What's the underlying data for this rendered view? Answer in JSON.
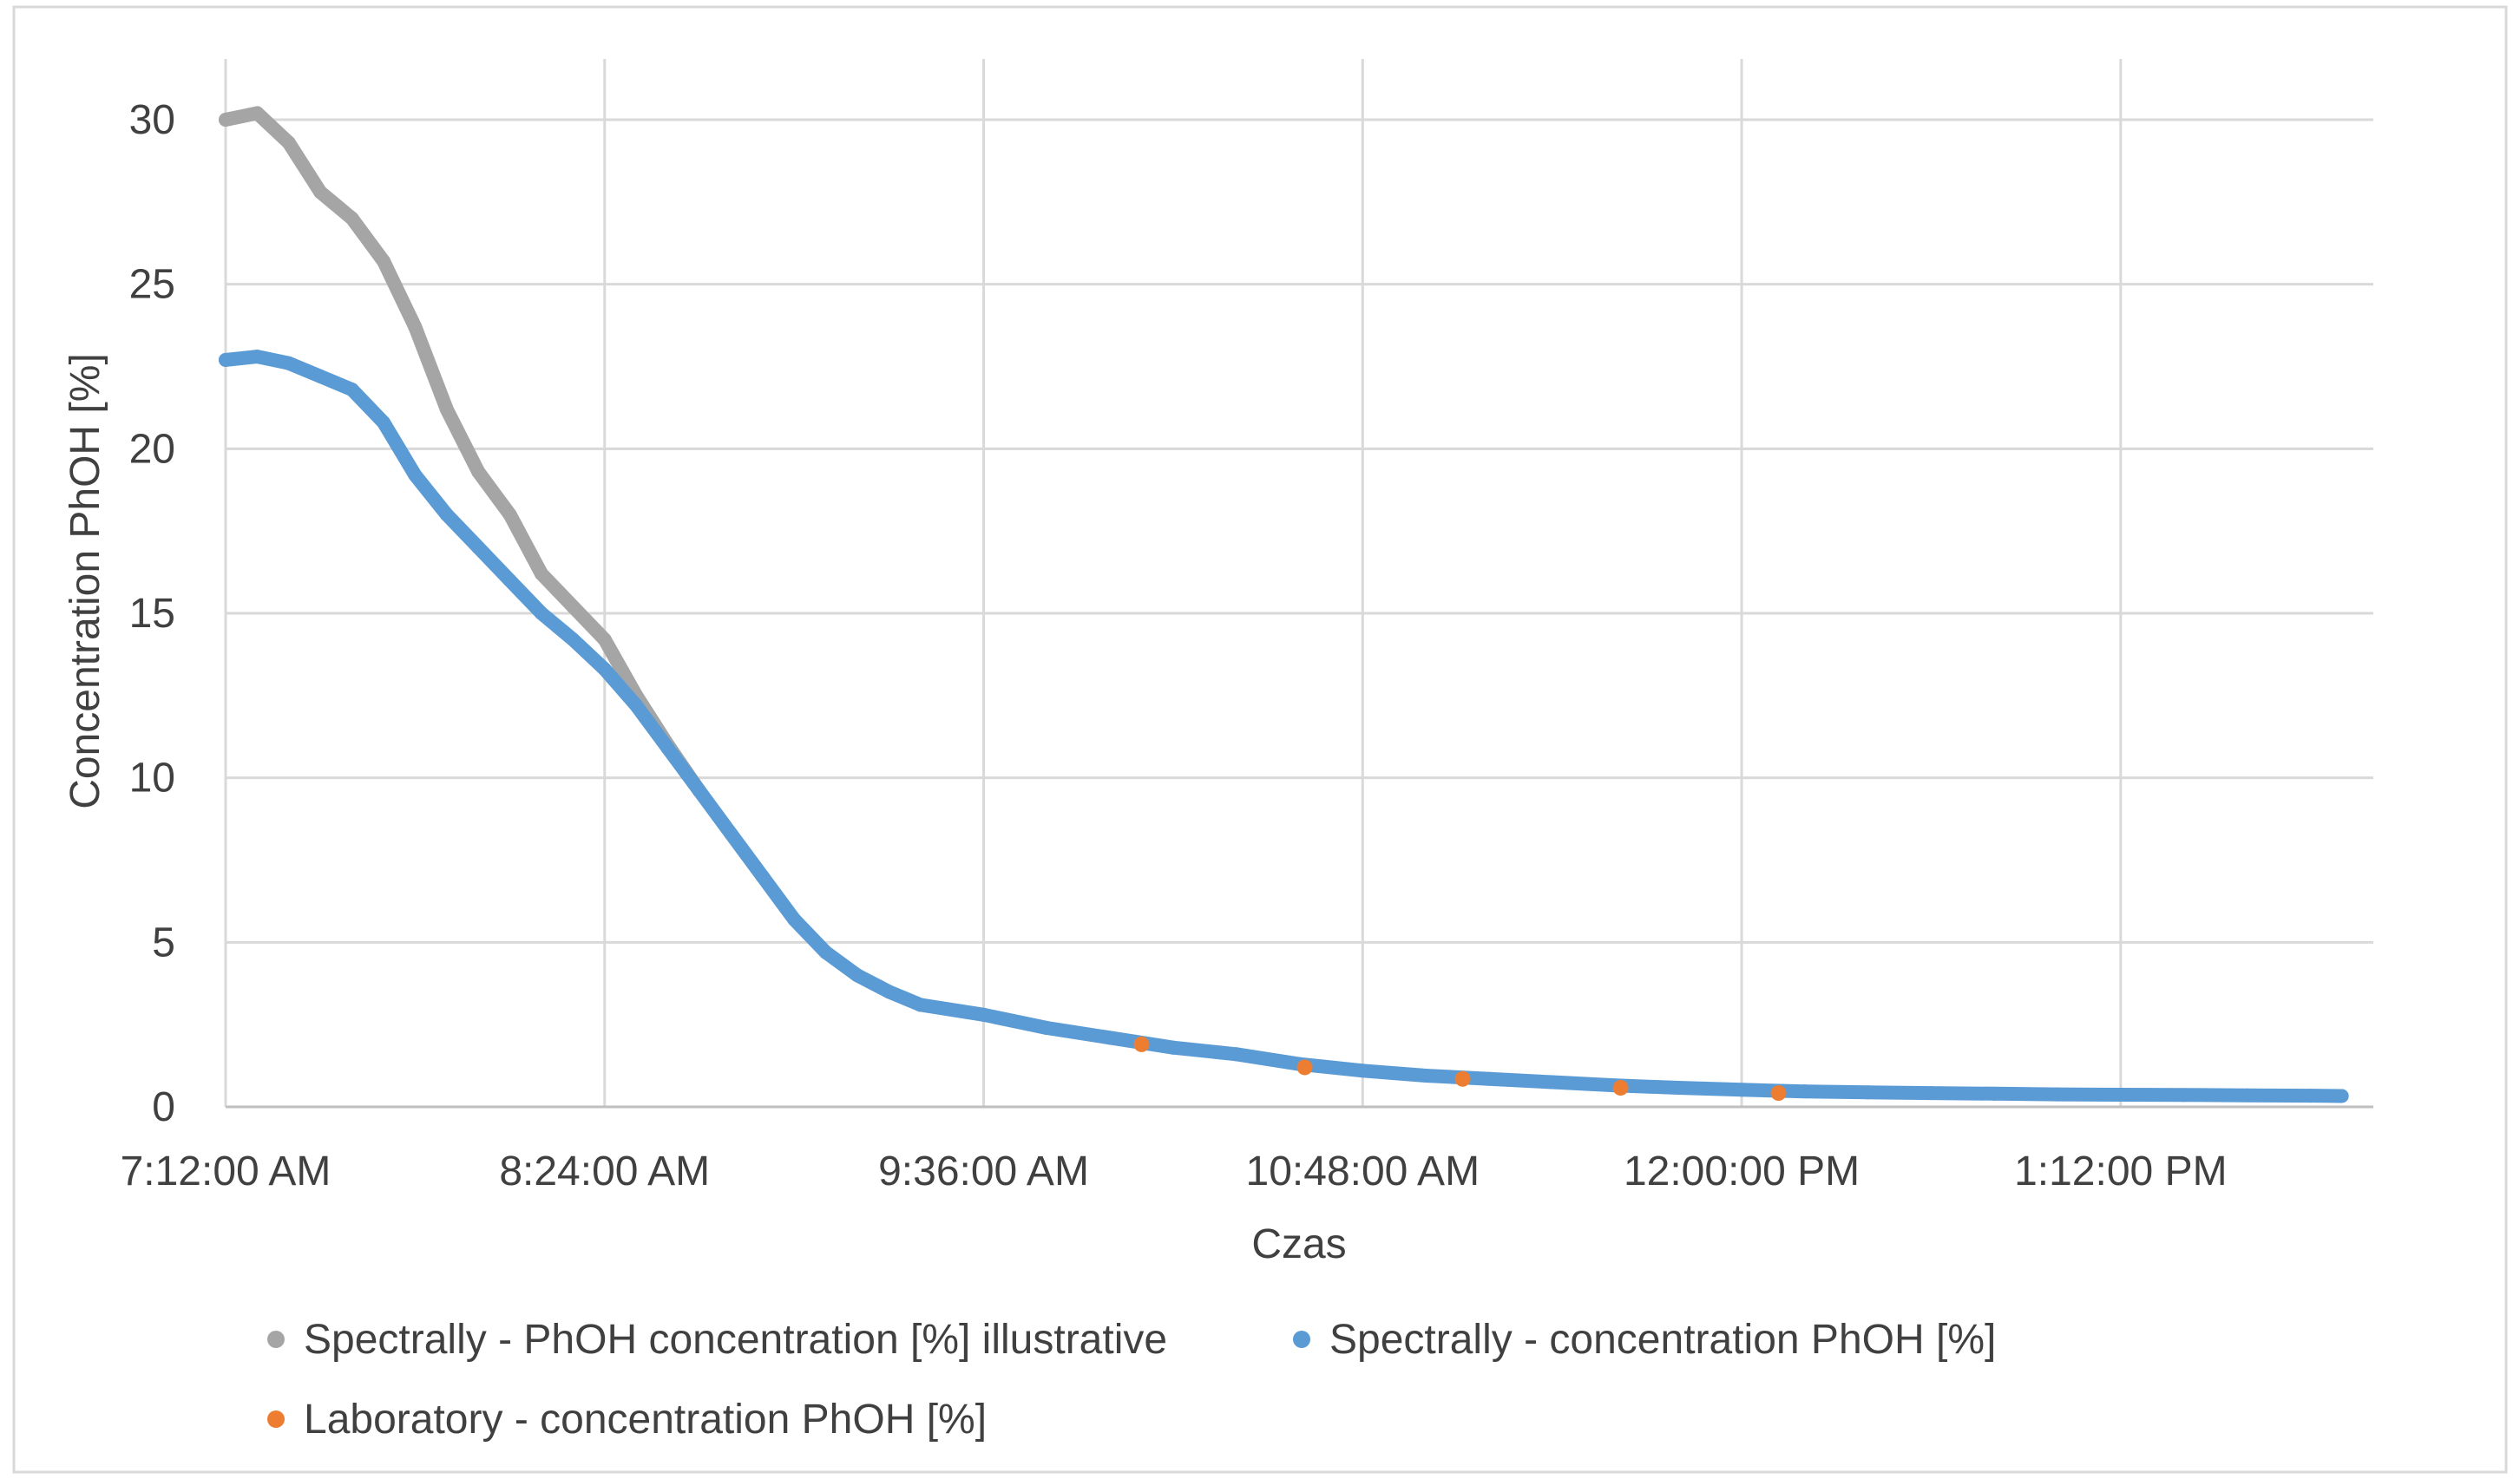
{
  "chart_data": {
    "type": "scatter",
    "title": "",
    "xlabel": "Czas",
    "ylabel": "Concentration PhOH [%]",
    "x_unit": "minutes after 7:12:00 AM",
    "xlim": [
      "7:12:00 AM",
      "2:00:00 PM"
    ],
    "ylim": [
      0,
      30
    ],
    "y_ticks": [
      "0",
      "5",
      "10",
      "15",
      "20",
      "25",
      "30"
    ],
    "x_ticks": [
      "7:12:00 AM",
      "8:24:00 AM",
      "9:36:00 AM",
      "10:48:00 AM",
      "12:00:00 PM",
      "1:12:00 PM"
    ],
    "grid": true,
    "legend_position": "bottom",
    "series": [
      {
        "name": "Spectrally - PhOH concentration [%] illustrative",
        "color": "#a5a5a5",
        "points": [
          [
            "7:12:00 AM",
            30.0
          ],
          [
            "7:18:00 AM",
            30.2
          ],
          [
            "7:24:00 AM",
            29.3
          ],
          [
            "7:30:00 AM",
            27.8
          ],
          [
            "7:36:00 AM",
            27.0
          ],
          [
            "7:42:00 AM",
            25.7
          ],
          [
            "7:48:00 AM",
            23.7
          ],
          [
            "7:54:00 AM",
            21.2
          ],
          [
            "8:00:00 AM",
            19.3
          ],
          [
            "8:06:00 AM",
            18.0
          ],
          [
            "8:12:00 AM",
            16.2
          ],
          [
            "8:18:00 AM",
            15.2
          ],
          [
            "8:24:00 AM",
            14.2
          ],
          [
            "8:30:00 AM",
            12.5
          ],
          [
            "8:36:00 AM",
            11.0
          ],
          [
            "8:42:00 AM",
            9.6
          ]
        ]
      },
      {
        "name": "Spectrally - concentration PhOH [%]",
        "color": "#5b9bd5",
        "points": [
          [
            "7:12:00 AM",
            22.7
          ],
          [
            "7:18:00 AM",
            22.8
          ],
          [
            "7:24:00 AM",
            22.6
          ],
          [
            "7:30:00 AM",
            22.2
          ],
          [
            "7:36:00 AM",
            21.8
          ],
          [
            "7:42:00 AM",
            20.8
          ],
          [
            "7:48:00 AM",
            19.2
          ],
          [
            "7:54:00 AM",
            18.0
          ],
          [
            "8:00:00 AM",
            17.0
          ],
          [
            "8:06:00 AM",
            16.0
          ],
          [
            "8:12:00 AM",
            15.0
          ],
          [
            "8:18:00 AM",
            14.2
          ],
          [
            "8:24:00 AM",
            13.3
          ],
          [
            "8:30:00 AM",
            12.2
          ],
          [
            "8:36:00 AM",
            10.9
          ],
          [
            "8:42:00 AM",
            9.6
          ],
          [
            "8:48:00 AM",
            8.3
          ],
          [
            "8:54:00 AM",
            7.0
          ],
          [
            "9:00:00 AM",
            5.7
          ],
          [
            "9:06:00 AM",
            4.7
          ],
          [
            "9:12:00 AM",
            4.0
          ],
          [
            "9:18:00 AM",
            3.5
          ],
          [
            "9:24:00 AM",
            3.1
          ],
          [
            "9:36:00 AM",
            2.8
          ],
          [
            "9:48:00 AM",
            2.4
          ],
          [
            "10:00:00 AM",
            2.1
          ],
          [
            "10:12:00 AM",
            1.8
          ],
          [
            "10:24:00 AM",
            1.6
          ],
          [
            "10:36:00 AM",
            1.3
          ],
          [
            "10:48:00 AM",
            1.1
          ],
          [
            "11:00:00 AM",
            0.95
          ],
          [
            "11:12:00 AM",
            0.85
          ],
          [
            "11:24:00 AM",
            0.75
          ],
          [
            "11:36:00 AM",
            0.65
          ],
          [
            "11:48:00 AM",
            0.58
          ],
          [
            "12:00:00 PM",
            0.52
          ],
          [
            "12:12:00 PM",
            0.47
          ],
          [
            "12:24:00 PM",
            0.44
          ],
          [
            "12:36:00 PM",
            0.42
          ],
          [
            "12:48:00 PM",
            0.4
          ],
          [
            "1:00:00 PM",
            0.38
          ],
          [
            "1:12:00 PM",
            0.37
          ],
          [
            "1:24:00 PM",
            0.36
          ],
          [
            "1:36:00 PM",
            0.35
          ],
          [
            "1:48:00 PM",
            0.34
          ],
          [
            "1:54:00 PM",
            0.33
          ]
        ]
      },
      {
        "name": "Laboratory - concentration PhOH [%]",
        "color": "#ed7d31",
        "points": [
          [
            "10:06:00 AM",
            1.9
          ],
          [
            "10:37:00 AM",
            1.2
          ],
          [
            "11:07:00 AM",
            0.85
          ],
          [
            "11:37:00 AM",
            0.58
          ],
          [
            "12:07:00 PM",
            0.42
          ]
        ]
      }
    ]
  }
}
